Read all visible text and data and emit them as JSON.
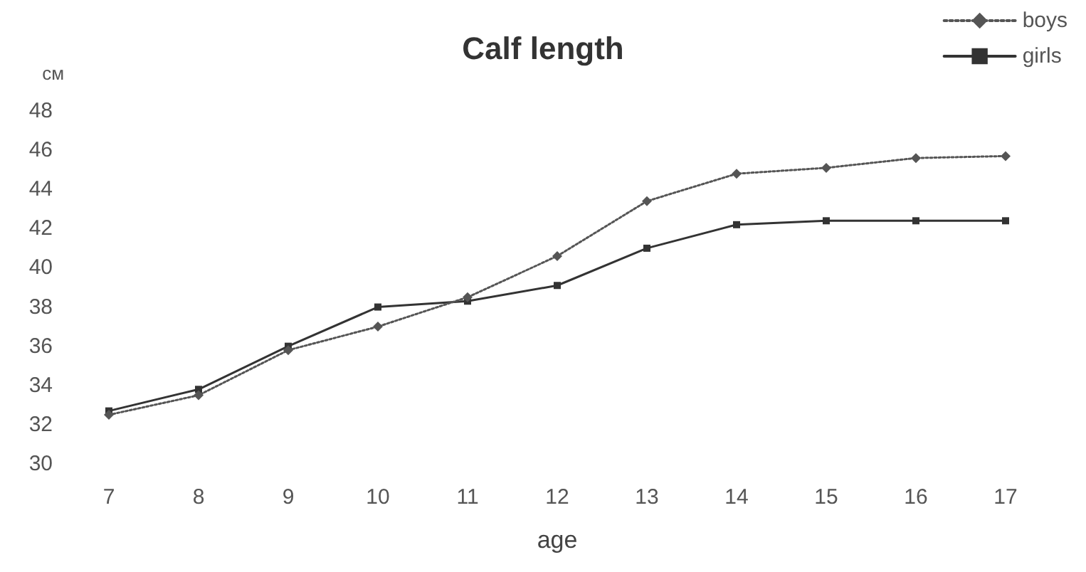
{
  "chart_data": {
    "type": "line",
    "title": "Calf length",
    "xlabel": "age",
    "ylabel": "см",
    "categories": [
      "7",
      "8",
      "9",
      "10",
      "11",
      "12",
      "13",
      "14",
      "15",
      "16",
      "17"
    ],
    "series": [
      {
        "name": "boys",
        "color": "#555555",
        "marker": "diamond",
        "line_style": "dotted",
        "values": [
          32.5,
          33.5,
          35.8,
          37.0,
          38.5,
          40.6,
          43.4,
          44.8,
          45.1,
          45.6,
          45.7
        ]
      },
      {
        "name": "girls",
        "color": "#333333",
        "marker": "square",
        "line_style": "solid",
        "values": [
          32.7,
          33.8,
          36.0,
          38.0,
          38.3,
          39.1,
          41.0,
          42.2,
          42.4,
          42.4,
          42.4
        ]
      }
    ],
    "ylim": [
      30,
      48
    ],
    "yticks": [
      30,
      32,
      34,
      36,
      38,
      40,
      42,
      44,
      46,
      48
    ],
    "grid": false,
    "legend": "top right"
  }
}
